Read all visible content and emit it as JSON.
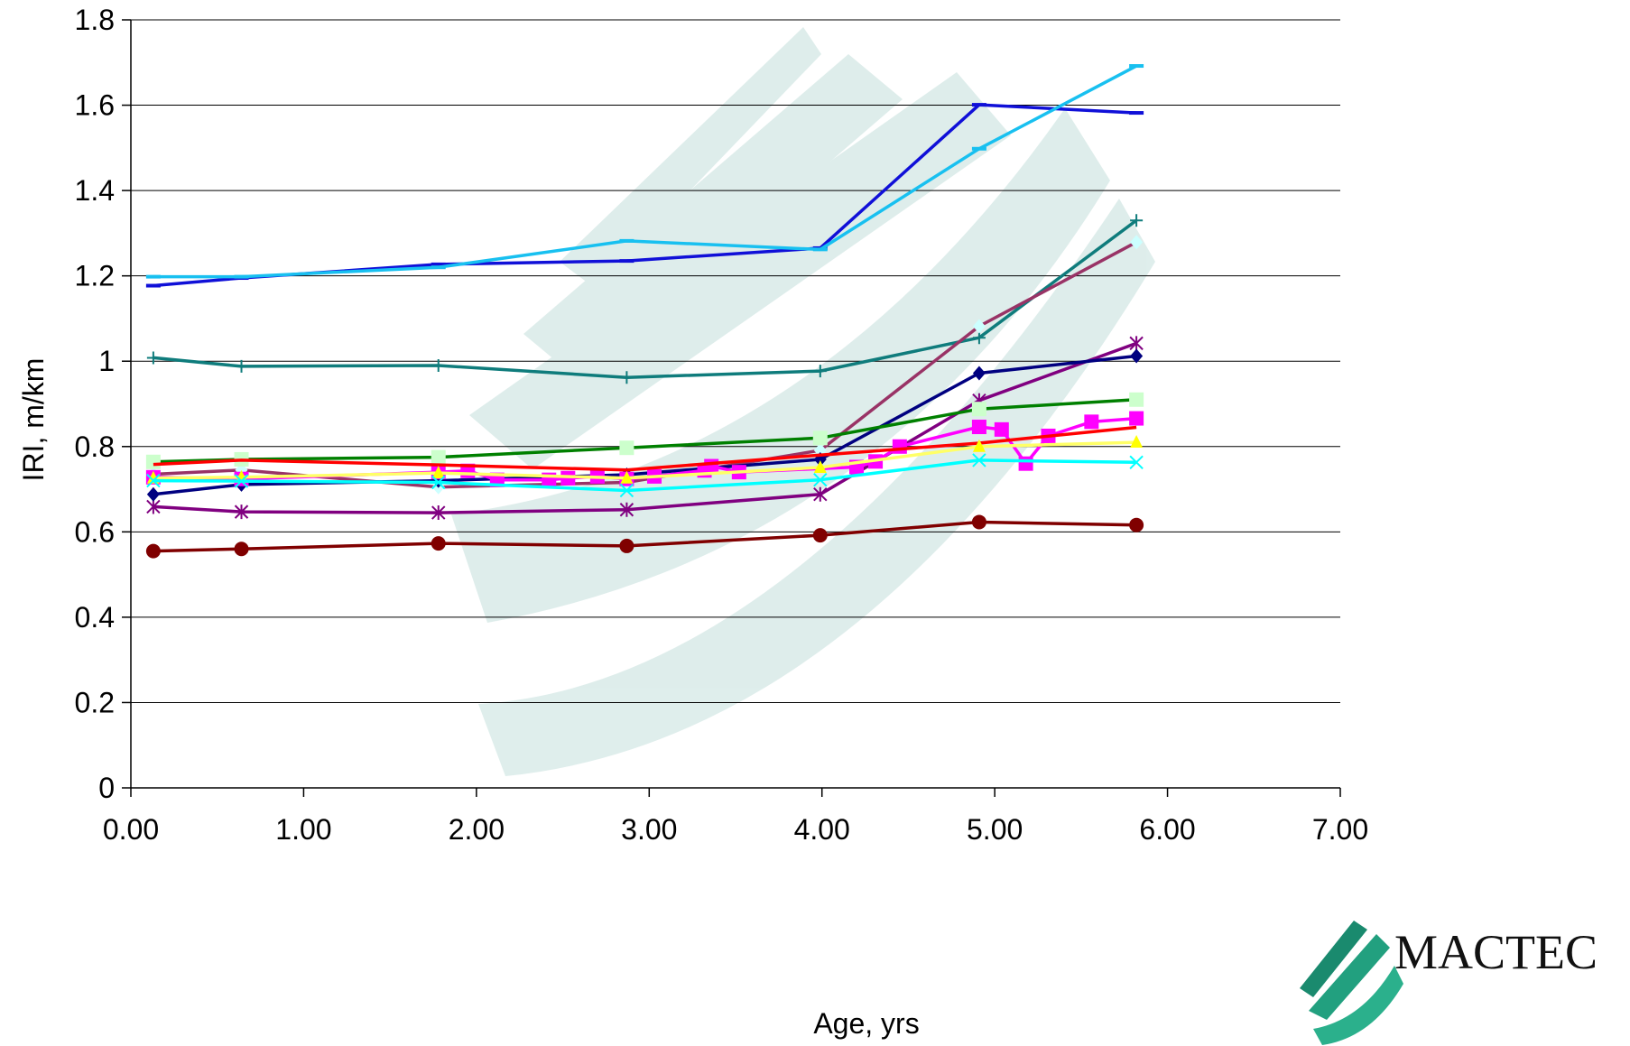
{
  "chart_data": {
    "type": "line",
    "xlabel": "Age, yrs",
    "ylabel": "IRI, m/km",
    "xlim": [
      0,
      7
    ],
    "ylim": [
      0,
      1.8
    ],
    "x_ticks": [
      "0.00",
      "1.00",
      "2.00",
      "3.00",
      "4.00",
      "5.00",
      "6.00",
      "7.00"
    ],
    "y_ticks": [
      "0",
      "0.2",
      "0.4",
      "0.6",
      "0.8",
      "1",
      "1.2",
      "1.4",
      "1.6",
      "1.8"
    ],
    "grid": "horizontal",
    "legend": "none",
    "series": [
      {
        "color": "#1010D8",
        "marker": "dash",
        "x": [
          0.13,
          0.64,
          1.78,
          2.87,
          3.99,
          4.91,
          5.82
        ],
        "y": [
          1.177,
          1.195,
          1.227,
          1.235,
          1.265,
          1.601,
          1.582
        ]
      },
      {
        "color": "#18C0F0",
        "marker": "dash",
        "x": [
          0.13,
          0.64,
          1.78,
          2.87,
          3.99,
          4.91,
          5.82
        ],
        "y": [
          1.198,
          1.198,
          1.22,
          1.282,
          1.262,
          1.498,
          1.692
        ]
      },
      {
        "color": "#0F7C7C",
        "marker": "plus",
        "x": [
          0.13,
          0.64,
          1.78,
          2.87,
          3.99,
          4.91,
          5.82
        ],
        "y": [
          1.008,
          0.988,
          0.99,
          0.962,
          0.977,
          1.055,
          1.33
        ]
      },
      {
        "color": "#993366",
        "marker": "diamond-open",
        "markerColor": "#CCFFFF",
        "x": [
          0.13,
          0.64,
          1.78,
          2.87,
          3.99,
          4.91,
          5.82
        ],
        "y": [
          0.735,
          0.745,
          0.705,
          0.716,
          0.791,
          1.082,
          1.279
        ]
      },
      {
        "color": "#800080",
        "marker": "star",
        "x": [
          0.13,
          0.64,
          1.78,
          2.87,
          3.99,
          4.91,
          5.82
        ],
        "y": [
          0.659,
          0.647,
          0.645,
          0.652,
          0.688,
          0.908,
          1.042
        ]
      },
      {
        "color": "#000080",
        "marker": "diamond",
        "x": [
          0.13,
          0.64,
          1.78,
          2.87,
          3.99,
          4.91,
          5.82
        ],
        "y": [
          0.688,
          0.711,
          0.72,
          0.734,
          0.77,
          0.972,
          1.012
        ]
      },
      {
        "color": "#008000",
        "marker": "square",
        "markerColor": "#CCFFCC",
        "x": [
          0.13,
          0.64,
          1.78,
          2.87,
          3.99,
          4.91,
          5.82
        ],
        "y": [
          0.764,
          0.77,
          0.775,
          0.797,
          0.82,
          0.888,
          0.91
        ]
      },
      {
        "color": "#FF00FF",
        "marker": "square",
        "x": [
          0.13,
          0.64,
          1.78,
          1.95,
          2.12,
          2.42,
          2.53,
          2.7,
          2.87,
          3.03,
          3.32,
          3.36,
          3.52,
          4.2,
          4.31,
          4.45,
          4.91,
          5.04,
          5.18,
          5.31,
          5.56,
          5.82
        ],
        "y": [
          0.728,
          0.724,
          0.74,
          0.743,
          0.722,
          0.722,
          0.726,
          0.73,
          0.724,
          0.73,
          0.744,
          0.754,
          0.74,
          0.752,
          0.765,
          0.8,
          0.846,
          0.84,
          0.76,
          0.825,
          0.858,
          0.866
        ]
      },
      {
        "color": "#FF0000",
        "marker": "none",
        "x": [
          0.13,
          0.64,
          1.78,
          2.87,
          3.99,
          4.91,
          5.82
        ],
        "y": [
          0.758,
          0.768,
          0.757,
          0.745,
          0.78,
          0.808,
          0.845
        ]
      },
      {
        "color": "#FFFF66",
        "marker": "triangle",
        "markerColor": "#FFFF00",
        "x": [
          0.13,
          0.64,
          1.78,
          2.87,
          3.99,
          4.91,
          5.82
        ],
        "y": [
          0.726,
          0.728,
          0.738,
          0.726,
          0.751,
          0.8,
          0.81
        ]
      },
      {
        "color": "#00FFFF",
        "marker": "x",
        "x": [
          0.13,
          0.64,
          1.78,
          2.87,
          3.99,
          4.91,
          5.82
        ],
        "y": [
          0.72,
          0.719,
          0.716,
          0.697,
          0.722,
          0.768,
          0.763
        ]
      },
      {
        "color": "#800000",
        "marker": "circle",
        "x": [
          0.13,
          0.64,
          1.78,
          2.87,
          3.99,
          4.91,
          5.82
        ],
        "y": [
          0.555,
          0.56,
          0.573,
          0.567,
          0.592,
          0.623,
          0.616
        ]
      }
    ]
  },
  "logo": {
    "text": "MACTEC",
    "icon": "book-logo-icon"
  }
}
